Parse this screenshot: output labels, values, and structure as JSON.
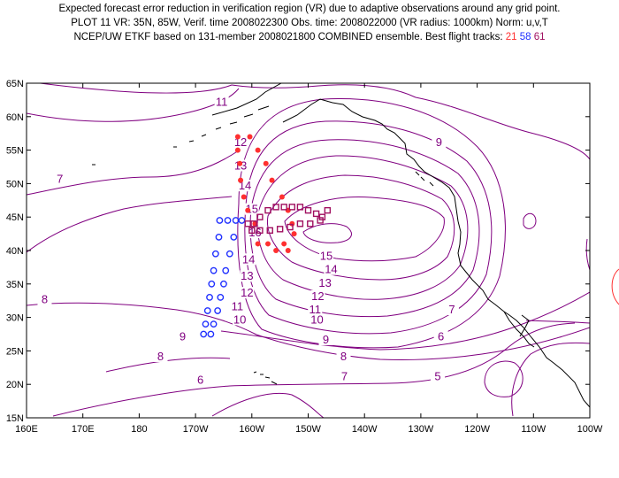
{
  "title": {
    "line1": "Expected forecast error reduction in verification region (VR) due to adaptive observations around any grid point.",
    "line2": "PLOT 11 VR: 35N, 85W, Verif. time 2008022300 Obs. time: 2008022000 (VR radius: 1000km) Norm: u,v,T",
    "line3_prefix": "NCEP/UW ETKF based on 131-member 2008021800 COMBINED ensemble.  Best flight tracks:",
    "track1": "21",
    "track2": "58",
    "track3": "61"
  },
  "colors": {
    "contour": "#800080",
    "coast": "#000000",
    "track1": "#ff3030",
    "track2": "#2030ff",
    "track3": "#a01060"
  },
  "map": {
    "lon_range": [
      160,
      300
    ],
    "lat_range": [
      15,
      65
    ],
    "lon_ticks": [
      "160E",
      "170E",
      "180",
      "170W",
      "160W",
      "150W",
      "140W",
      "130W",
      "120W",
      "110W",
      "100W"
    ],
    "lat_ticks": [
      "15N",
      "20N",
      "25N",
      "30N",
      "35N",
      "40N",
      "45N",
      "50N",
      "55N",
      "60N",
      "65N"
    ]
  },
  "contour_labels": [
    {
      "text": "11",
      "lon": 208.5,
      "lat": 62
    },
    {
      "text": "12",
      "lon": 213.2,
      "lat": 56
    },
    {
      "text": "13",
      "lon": 213.2,
      "lat": 52.5
    },
    {
      "text": "14",
      "lon": 214.3,
      "lat": 49.5
    },
    {
      "text": "15",
      "lon": 216.0,
      "lat": 46
    },
    {
      "text": "16",
      "lon": 216.8,
      "lat": 42.5
    },
    {
      "text": "14",
      "lon": 215.2,
      "lat": 38.5
    },
    {
      "text": "13",
      "lon": 214.8,
      "lat": 36
    },
    {
      "text": "12",
      "lon": 214.8,
      "lat": 33.5
    },
    {
      "text": "11",
      "lon": 212.4,
      "lat": 31.5
    },
    {
      "text": "10",
      "lon": 213.0,
      "lat": 29.5
    },
    {
      "text": "9",
      "lon": 198.8,
      "lat": 27
    },
    {
      "text": "8",
      "lon": 193.3,
      "lat": 24
    },
    {
      "text": "7",
      "lon": 168.3,
      "lat": 50.5
    },
    {
      "text": "8",
      "lon": 164.5,
      "lat": 32.5
    },
    {
      "text": "6",
      "lon": 203.2,
      "lat": 20.5
    },
    {
      "text": "7",
      "lon": 239.0,
      "lat": 21
    },
    {
      "text": "8",
      "lon": 238.8,
      "lat": 24
    },
    {
      "text": "9",
      "lon": 234.4,
      "lat": 26.5
    },
    {
      "text": "10",
      "lon": 232.2,
      "lat": 29.5
    },
    {
      "text": "11",
      "lon": 231.7,
      "lat": 31
    },
    {
      "text": "12",
      "lon": 232.4,
      "lat": 33
    },
    {
      "text": "13",
      "lon": 234.2,
      "lat": 35
    },
    {
      "text": "14",
      "lon": 235.7,
      "lat": 37
    },
    {
      "text": "15",
      "lon": 234.5,
      "lat": 39
    },
    {
      "text": "9",
      "lon": 262.5,
      "lat": 56
    },
    {
      "text": "7",
      "lon": 265.7,
      "lat": 31
    },
    {
      "text": "6",
      "lon": 263.0,
      "lat": 27
    },
    {
      "text": "5",
      "lon": 262.2,
      "lat": 21
    }
  ],
  "flight_tracks": {
    "track21_points": [
      [
        212.5,
        57
      ],
      [
        215.5,
        57
      ],
      [
        212.5,
        55
      ],
      [
        217.5,
        55
      ],
      [
        213,
        53
      ],
      [
        219.5,
        53
      ],
      [
        213.2,
        50.5
      ],
      [
        221,
        50.5
      ],
      [
        214,
        48
      ],
      [
        223.5,
        48
      ],
      [
        215,
        46
      ],
      [
        225,
        46
      ],
      [
        216.8,
        44
      ],
      [
        226,
        44
      ],
      [
        217.5,
        41
      ],
      [
        224,
        41
      ],
      [
        220,
        41
      ],
      [
        222,
        40
      ],
      [
        225,
        40
      ],
      [
        226.5,
        42.5
      ]
    ],
    "track58_points": [
      [
        208,
        44.5
      ],
      [
        210,
        44.5
      ],
      [
        212,
        44.5
      ],
      [
        213.5,
        44.5
      ],
      [
        207.8,
        42
      ],
      [
        211.5,
        42
      ],
      [
        207,
        39.5
      ],
      [
        210.5,
        39.5
      ],
      [
        206.5,
        37
      ],
      [
        209.5,
        37
      ],
      [
        206,
        35
      ],
      [
        209,
        35
      ],
      [
        205.5,
        33
      ],
      [
        208.2,
        33
      ],
      [
        205,
        31
      ],
      [
        207.5,
        31
      ],
      [
        204.5,
        29
      ],
      [
        206.5,
        29
      ],
      [
        204,
        27.5
      ],
      [
        205.8,
        27.5
      ]
    ],
    "track61_points": [
      [
        215,
        44
      ],
      [
        216.5,
        44
      ],
      [
        218,
        45
      ],
      [
        220,
        46
      ],
      [
        222,
        46.5
      ],
      [
        224,
        46.5
      ],
      [
        226,
        46.5
      ],
      [
        228,
        46.5
      ],
      [
        230,
        46
      ],
      [
        232,
        45.5
      ],
      [
        233.5,
        45
      ],
      [
        234.8,
        46
      ],
      [
        233,
        44.5
      ],
      [
        230.5,
        44
      ],
      [
        228,
        44
      ],
      [
        225.5,
        43.5
      ],
      [
        223,
        43.2
      ],
      [
        220.5,
        43
      ],
      [
        218,
        43
      ],
      [
        216,
        43
      ]
    ]
  }
}
